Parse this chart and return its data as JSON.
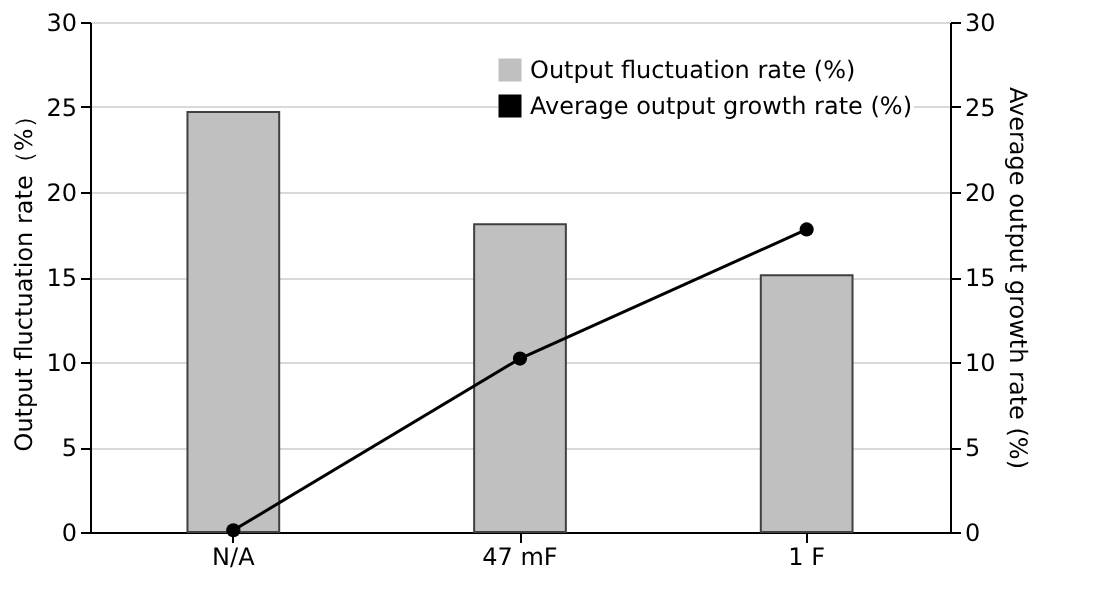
{
  "chart_data": {
    "type": "bar",
    "categories": [
      "N/A",
      "47 mF",
      "1 F"
    ],
    "ylabel": "Output fluctuation rate（%）",
    "y2label": "Average output growth rate (%)",
    "ylim": [
      0,
      30
    ],
    "yticks": [
      0,
      5,
      10,
      15,
      20,
      25,
      30
    ],
    "y2lim": [
      0,
      30
    ],
    "y2ticks": [
      0,
      5,
      10,
      15,
      20,
      25,
      30
    ],
    "grid": "y",
    "legend": "top right",
    "series": [
      {
        "name": "Output fluctuation rate (%)",
        "color": "#c0c0c0",
        "values": [
          24.7,
          18.1,
          15.1
        ]
      },
      {
        "name": "Average output growth rate (%)",
        "color": "#000000",
        "type": "line",
        "axis": "y2",
        "marker": "circle",
        "line_style": "solid",
        "values": [
          0.1,
          10.2,
          17.8
        ]
      }
    ]
  }
}
